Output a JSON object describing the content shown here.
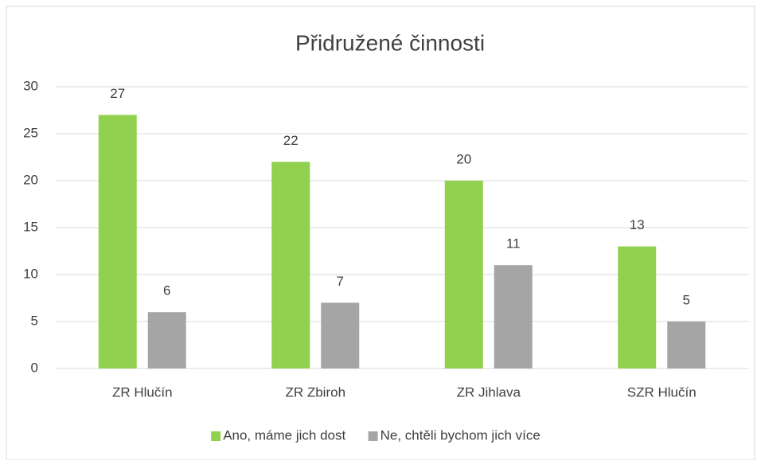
{
  "chart_data": {
    "type": "bar",
    "title": "Přidružené činnosti",
    "categories": [
      "ZR Hlučín",
      "ZR Zbiroh",
      "ZR Jihlava",
      "SZR Hlučín"
    ],
    "series": [
      {
        "name": "Ano, máme jich dost",
        "color": "#92d050",
        "values": [
          27,
          22,
          20,
          13
        ]
      },
      {
        "name": "Ne, chtěli bychom jich více",
        "color": "#a5a5a5",
        "values": [
          6,
          7,
          11,
          5
        ]
      }
    ],
    "ylim": [
      0,
      30
    ],
    "yticks": [
      0,
      5,
      10,
      15,
      20,
      25,
      30
    ],
    "grid": true,
    "legend": "bottom"
  }
}
